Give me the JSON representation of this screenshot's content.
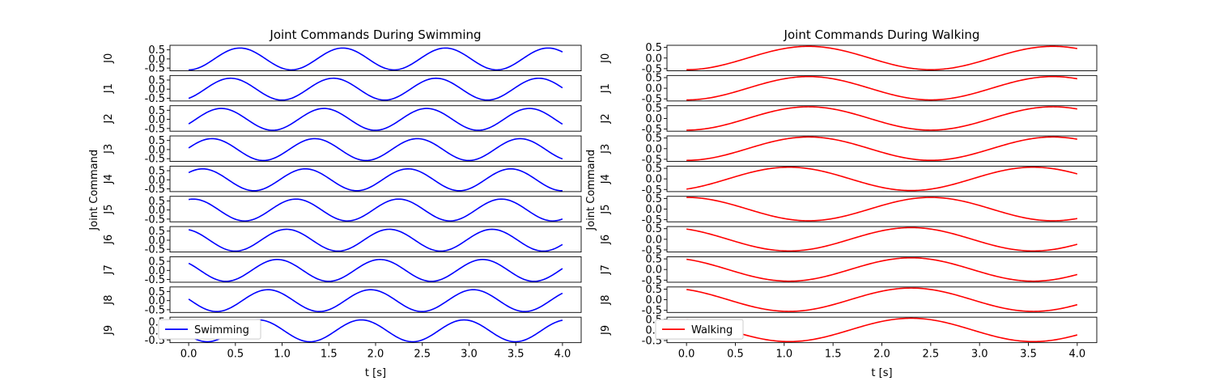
{
  "chart_data": [
    {
      "type": "line",
      "title": "Joint Commands During Swimming",
      "xlabel": "t [s]",
      "ylabel": "Joint Command",
      "xlim": [
        -0.2,
        4.2
      ],
      "ylim": [
        -0.65,
        0.75
      ],
      "xticks": [
        "0.0",
        "0.5",
        "1.0",
        "1.5",
        "2.0",
        "2.5",
        "3.0",
        "3.5",
        "4.0"
      ],
      "yticks": [
        "0.5",
        "0.0",
        "-0.5"
      ],
      "color": "#0000ff",
      "legend": {
        "label": "Swimming",
        "position": "lower-left"
      },
      "frequency_hz": 0.91,
      "amplitude": 0.6,
      "series": [
        {
          "label": "J0",
          "phase_offset_s": 0.0
        },
        {
          "label": "J1",
          "phase_offset_s": 0.1
        },
        {
          "label": "J2",
          "phase_offset_s": 0.2
        },
        {
          "label": "J3",
          "phase_offset_s": 0.3
        },
        {
          "label": "J4",
          "phase_offset_s": 0.4
        },
        {
          "label": "J5",
          "phase_offset_s": 0.5
        },
        {
          "label": "J6",
          "phase_offset_s": 0.6
        },
        {
          "label": "J7",
          "phase_offset_s": 0.7
        },
        {
          "label": "J8",
          "phase_offset_s": 0.8
        },
        {
          "label": "J9",
          "phase_offset_s": 0.9
        }
      ]
    },
    {
      "type": "line",
      "title": "Joint Commands During Walking",
      "xlabel": "t [s]",
      "ylabel": "Joint Command",
      "xlim": [
        -0.2,
        4.2
      ],
      "ylim": [
        -0.6,
        0.6
      ],
      "xticks": [
        "0.0",
        "0.5",
        "1.0",
        "1.5",
        "2.0",
        "2.5",
        "3.0",
        "3.5",
        "4.0"
      ],
      "yticks": [
        "0.5",
        "0.0",
        "-0.5"
      ],
      "color": "#ff0000",
      "legend": {
        "label": "Walking",
        "position": "lower-left"
      },
      "frequency_hz": 0.4,
      "amplitude": 0.55,
      "series": [
        {
          "label": "J0",
          "phase_offset_s": 0.0
        },
        {
          "label": "J1",
          "phase_offset_s": 0.0
        },
        {
          "label": "J2",
          "phase_offset_s": 0.0
        },
        {
          "label": "J3",
          "phase_offset_s": 0.0
        },
        {
          "label": "J4",
          "phase_offset_s": 0.2
        },
        {
          "label": "J5",
          "phase_offset_s": 1.25
        },
        {
          "label": "J6",
          "phase_offset_s": 1.45
        },
        {
          "label": "J7",
          "phase_offset_s": 1.45
        },
        {
          "label": "J8",
          "phase_offset_s": 1.45
        },
        {
          "label": "J9",
          "phase_offset_s": 1.45
        }
      ]
    }
  ]
}
